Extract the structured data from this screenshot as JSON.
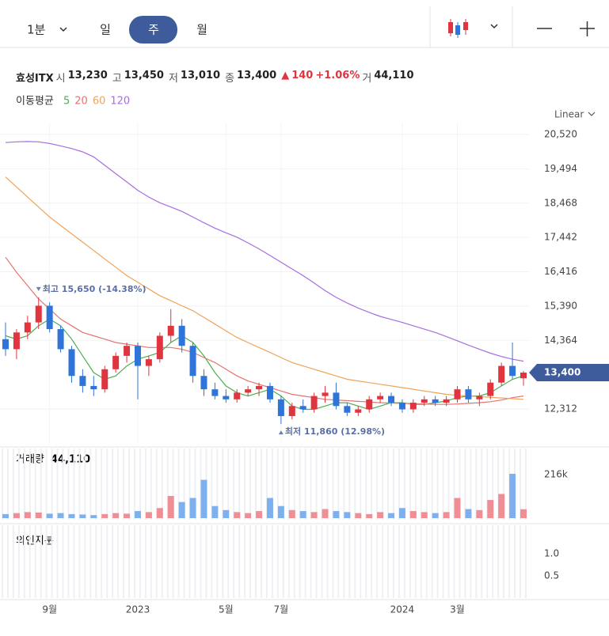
{
  "toolbar": {
    "interval": "1분",
    "tabs": [
      "일",
      "주",
      "월"
    ],
    "active": 1
  },
  "quote": {
    "name": "효성ITX",
    "items": [
      {
        "label": "시",
        "value": "13,230"
      },
      {
        "label": "고",
        "value": "13,450"
      },
      {
        "label": "저",
        "value": "13,010"
      },
      {
        "label": "종",
        "value": "13,400"
      }
    ],
    "change": "140",
    "change_pct": "+1.06%",
    "volume_label": "거",
    "volume_value": "44,110"
  },
  "chart_data": {
    "type": "candlestick",
    "scale_label": "Linear",
    "ma_label": "이동평균",
    "ylim": [
      11295,
      20875
    ],
    "yticks": [
      {
        "value": 20520,
        "label": "20,520"
      },
      {
        "value": 19494,
        "label": "19,494"
      },
      {
        "value": 18468,
        "label": "18,468"
      },
      {
        "value": 17442,
        "label": "17,442"
      },
      {
        "value": 16416,
        "label": "16,416"
      },
      {
        "value": 15390,
        "label": "15,390"
      },
      {
        "value": 14364,
        "label": "14,364"
      },
      {
        "value": 12312,
        "label": "12,312"
      }
    ],
    "xticks": [
      {
        "value": 4,
        "label": "9월"
      },
      {
        "value": 12,
        "label": "2023"
      },
      {
        "value": 20,
        "label": "5월"
      },
      {
        "value": 25,
        "label": "7월"
      },
      {
        "value": 36,
        "label": "2024"
      },
      {
        "value": 41,
        "label": "3월"
      }
    ],
    "colors": {
      "up": "#e0353f",
      "down": "#2f74d8",
      "up_volume": "#ef8f95",
      "down_volume": "#7fb0ee"
    },
    "last": {
      "value": 13400,
      "label": "13,400"
    },
    "annotations": [
      {
        "text": "최고 15,650 (-14.38%)",
        "index": 3,
        "value": 15650,
        "dir": "high"
      },
      {
        "text": "최저 11,860 (12.98%)",
        "index": 25,
        "value": 11860,
        "dir": "low"
      }
    ],
    "candles": [
      [
        14400,
        14900,
        13900,
        14100
      ],
      [
        14100,
        14700,
        13800,
        14600
      ],
      [
        14600,
        15100,
        14400,
        14900
      ],
      [
        14900,
        15650,
        14700,
        15400
      ],
      [
        15400,
        15500,
        14600,
        14700
      ],
      [
        14700,
        14800,
        14000,
        14100
      ],
      [
        14100,
        14200,
        13100,
        13300
      ],
      [
        13300,
        13500,
        12800,
        13000
      ],
      [
        13000,
        13300,
        12700,
        12900
      ],
      [
        12900,
        13600,
        12800,
        13500
      ],
      [
        13500,
        14000,
        13400,
        13900
      ],
      [
        13900,
        14300,
        13700,
        14200
      ],
      [
        14200,
        14300,
        12600,
        13600
      ],
      [
        13600,
        13900,
        13300,
        13800
      ],
      [
        13800,
        14600,
        13700,
        14500
      ],
      [
        14500,
        15300,
        14300,
        14800
      ],
      [
        14800,
        15000,
        14000,
        14200
      ],
      [
        14200,
        14300,
        13100,
        13300
      ],
      [
        13300,
        13500,
        12700,
        12900
      ],
      [
        12900,
        13100,
        12600,
        12700
      ],
      [
        12700,
        12900,
        12500,
        12600
      ],
      [
        12600,
        12900,
        12500,
        12800
      ],
      [
        12800,
        13000,
        12700,
        12900
      ],
      [
        12900,
        13100,
        12700,
        13000
      ],
      [
        13000,
        13100,
        12500,
        12600
      ],
      [
        12600,
        12700,
        11860,
        12100
      ],
      [
        12100,
        12500,
        12000,
        12400
      ],
      [
        12400,
        12600,
        12200,
        12300
      ],
      [
        12300,
        12800,
        12200,
        12700
      ],
      [
        12700,
        13000,
        12500,
        12800
      ],
      [
        12800,
        13100,
        12300,
        12400
      ],
      [
        12400,
        12500,
        12100,
        12200
      ],
      [
        12200,
        12400,
        12100,
        12300
      ],
      [
        12300,
        12700,
        12200,
        12600
      ],
      [
        12600,
        12800,
        12500,
        12700
      ],
      [
        12700,
        12800,
        12400,
        12500
      ],
      [
        12500,
        12600,
        12200,
        12300
      ],
      [
        12300,
        12600,
        12200,
        12500
      ],
      [
        12500,
        12700,
        12400,
        12600
      ],
      [
        12600,
        12700,
        12400,
        12500
      ],
      [
        12500,
        12700,
        12400,
        12600
      ],
      [
        12600,
        13000,
        12500,
        12900
      ],
      [
        12900,
        13000,
        12500,
        12600
      ],
      [
        12600,
        12800,
        12400,
        12700
      ],
      [
        12700,
        13200,
        12600,
        13100
      ],
      [
        13100,
        13700,
        13000,
        13600
      ],
      [
        13600,
        14300,
        13200,
        13300
      ],
      [
        13230,
        13450,
        13010,
        13400
      ]
    ],
    "ma": [
      {
        "name": "5",
        "color": "#4caf50",
        "values": [
          14500,
          14400,
          14500,
          14800,
          15000,
          14800,
          14400,
          13900,
          13400,
          13200,
          13300,
          13600,
          13800,
          13900,
          14000,
          14300,
          14500,
          14300,
          13900,
          13400,
          13000,
          12800,
          12700,
          12800,
          12900,
          12700,
          12400,
          12300,
          12300,
          12400,
          12500,
          12500,
          12400,
          12300,
          12400,
          12500,
          12500,
          12450,
          12450,
          12500,
          12550,
          12650,
          12700,
          12700,
          12800,
          13000,
          13200,
          13300
        ]
      },
      {
        "name": "20",
        "color": "#e5736f",
        "values": [
          16850,
          16400,
          16000,
          15600,
          15300,
          15000,
          14800,
          14600,
          14500,
          14400,
          14300,
          14250,
          14200,
          14150,
          14150,
          14150,
          14100,
          14000,
          13850,
          13700,
          13500,
          13300,
          13150,
          13050,
          12950,
          12850,
          12750,
          12700,
          12650,
          12600,
          12580,
          12560,
          12540,
          12520,
          12500,
          12490,
          12480,
          12470,
          12460,
          12450,
          12450,
          12460,
          12480,
          12500,
          12530,
          12580,
          12650,
          12700
        ]
      },
      {
        "name": "60",
        "color": "#f0a35a",
        "values": [
          19250,
          18950,
          18650,
          18350,
          18050,
          17800,
          17550,
          17300,
          17050,
          16800,
          16550,
          16300,
          16100,
          15900,
          15700,
          15550,
          15400,
          15250,
          15050,
          14850,
          14650,
          14450,
          14300,
          14150,
          14000,
          13850,
          13700,
          13600,
          13500,
          13400,
          13300,
          13200,
          13150,
          13100,
          13050,
          13000,
          12950,
          12900,
          12850,
          12800,
          12750,
          12720,
          12700,
          12680,
          12660,
          12640,
          12620,
          12600
        ]
      },
      {
        "name": "120",
        "color": "#a66ee0",
        "values": [
          20280,
          20300,
          20310,
          20300,
          20250,
          20180,
          20100,
          20000,
          19850,
          19600,
          19350,
          19100,
          18850,
          18650,
          18480,
          18350,
          18220,
          18050,
          17880,
          17720,
          17580,
          17450,
          17280,
          17100,
          16900,
          16700,
          16500,
          16300,
          16080,
          15850,
          15650,
          15480,
          15330,
          15200,
          15080,
          14990,
          14900,
          14800,
          14700,
          14600,
          14480,
          14350,
          14220,
          14100,
          13980,
          13880,
          13800,
          13740
        ]
      }
    ],
    "volume": {
      "label": "거래량",
      "value_label": "44,110",
      "ylim": [
        0,
        314000
      ],
      "yticks": [
        {
          "value": 216000,
          "label": "216k"
        }
      ],
      "values": [
        20000,
        25000,
        30000,
        28000,
        22000,
        25000,
        20000,
        18000,
        15000,
        20000,
        25000,
        22000,
        35000,
        30000,
        50000,
        110000,
        80000,
        100000,
        190000,
        60000,
        40000,
        30000,
        25000,
        35000,
        100000,
        60000,
        40000,
        35000,
        30000,
        45000,
        35000,
        30000,
        25000,
        20000,
        30000,
        25000,
        50000,
        35000,
        30000,
        25000,
        30000,
        100000,
        45000,
        40000,
        90000,
        120000,
        220000,
        44110
      ]
    },
    "foreign": {
      "label": "외인지분",
      "ylim": [
        0,
        1.5
      ],
      "yticks": [
        {
          "value": 1,
          "label": "1.0"
        },
        0.5
      ]
    }
  }
}
